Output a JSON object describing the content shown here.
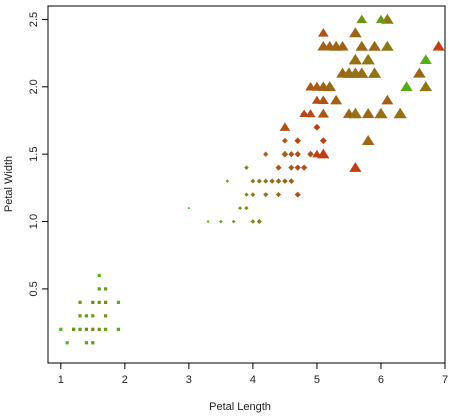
{
  "chart_data": {
    "type": "scatter",
    "title": "",
    "xlabel": "Petal Length",
    "ylabel": "Petal Width",
    "xlim": [
      0.8,
      7.0
    ],
    "ylim": [
      -0.05,
      2.6
    ],
    "xticks": [
      1,
      2,
      3,
      4,
      5,
      6,
      7
    ],
    "yticks": [
      0.5,
      1.0,
      1.5,
      2.0,
      2.5
    ],
    "ytick_labels": [
      "0.5",
      "1.0",
      "1.5",
      "2.0",
      "2.5"
    ],
    "grid": false,
    "legend": "none",
    "series": [
      {
        "marker": "square",
        "values": [
          [
            1.0,
            0.2,
            0.08
          ],
          [
            1.1,
            0.1,
            0.1
          ],
          [
            1.2,
            0.2,
            0.15
          ],
          [
            1.3,
            0.2,
            0.25
          ],
          [
            1.3,
            0.3,
            0.25
          ],
          [
            1.3,
            0.4,
            0.3
          ],
          [
            1.4,
            0.2,
            0.4
          ],
          [
            1.4,
            0.1,
            0.2
          ],
          [
            1.4,
            0.3,
            0.25
          ],
          [
            1.5,
            0.2,
            0.4
          ],
          [
            1.5,
            0.1,
            0.3
          ],
          [
            1.5,
            0.4,
            0.35
          ],
          [
            1.5,
            0.3,
            0.2
          ],
          [
            1.6,
            0.2,
            0.3
          ],
          [
            1.6,
            0.4,
            0.3
          ],
          [
            1.6,
            0.6,
            0.1
          ],
          [
            1.6,
            0.5,
            0.2
          ],
          [
            1.7,
            0.4,
            0.4
          ],
          [
            1.7,
            0.3,
            0.3
          ],
          [
            1.7,
            0.5,
            0.25
          ],
          [
            1.7,
            0.2,
            0.2
          ],
          [
            1.9,
            0.2,
            0.2
          ],
          [
            1.9,
            0.4,
            0.15
          ],
          [
            1.2,
            0.2,
            0.25
          ]
        ]
      },
      {
        "marker": "diamond",
        "values": [
          [
            3.0,
            1.1,
            0.05
          ],
          [
            3.3,
            1.0,
            0.1
          ],
          [
            3.5,
            1.0,
            0.2
          ],
          [
            3.6,
            1.3,
            0.2
          ],
          [
            3.7,
            1.0,
            0.25
          ],
          [
            3.8,
            1.1,
            0.3
          ],
          [
            3.9,
            1.1,
            0.35
          ],
          [
            3.9,
            1.2,
            0.35
          ],
          [
            3.9,
            1.4,
            0.4
          ],
          [
            4.0,
            1.0,
            0.4
          ],
          [
            4.0,
            1.2,
            0.45
          ],
          [
            4.0,
            1.3,
            0.45
          ],
          [
            4.1,
            1.0,
            0.5
          ],
          [
            4.1,
            1.3,
            0.5
          ],
          [
            4.2,
            1.2,
            0.5
          ],
          [
            4.2,
            1.3,
            0.5
          ],
          [
            4.2,
            1.5,
            0.55
          ],
          [
            4.3,
            1.3,
            0.55
          ],
          [
            4.4,
            1.2,
            0.55
          ],
          [
            4.4,
            1.3,
            0.6
          ],
          [
            4.4,
            1.4,
            0.6
          ],
          [
            4.5,
            1.3,
            0.6
          ],
          [
            4.5,
            1.5,
            0.65
          ],
          [
            4.5,
            1.6,
            0.65
          ],
          [
            4.5,
            1.7,
            0.65
          ],
          [
            4.6,
            1.3,
            0.65
          ],
          [
            4.6,
            1.4,
            0.7
          ],
          [
            4.6,
            1.5,
            0.7
          ],
          [
            4.7,
            1.2,
            0.7
          ],
          [
            4.7,
            1.4,
            0.75
          ],
          [
            4.7,
            1.5,
            0.75
          ],
          [
            4.8,
            1.4,
            0.75
          ],
          [
            4.8,
            1.8,
            0.8
          ],
          [
            4.9,
            1.5,
            0.8
          ],
          [
            5.0,
            1.7,
            0.85
          ],
          [
            5.1,
            1.6,
            0.85
          ],
          [
            4.4,
            1.4,
            0.7
          ],
          [
            4.5,
            1.5,
            0.8
          ],
          [
            4.7,
            1.6,
            0.8
          ],
          [
            4.1,
            1.0,
            0.4
          ],
          [
            3.5,
            1.0,
            0.2
          ],
          [
            4.0,
            1.3,
            0.4
          ],
          [
            4.4,
            1.3,
            0.5
          ],
          [
            4.6,
            1.4,
            0.6
          ],
          [
            4.8,
            1.8,
            0.7
          ],
          [
            4.5,
            1.5,
            0.5
          ],
          [
            4.9,
            1.5,
            0.7
          ],
          [
            4.2,
            1.3,
            0.4
          ]
        ]
      },
      {
        "marker": "triangle",
        "values": [
          [
            4.5,
            1.7,
            0.7
          ],
          [
            4.8,
            1.8,
            0.8
          ],
          [
            4.9,
            1.8,
            0.75
          ],
          [
            4.9,
            2.0,
            0.7
          ],
          [
            5.0,
            1.5,
            0.8
          ],
          [
            5.0,
            1.9,
            0.75
          ],
          [
            5.0,
            2.0,
            0.65
          ],
          [
            5.1,
            1.5,
            0.85
          ],
          [
            5.1,
            1.8,
            0.65
          ],
          [
            5.1,
            1.9,
            0.7
          ],
          [
            5.1,
            2.0,
            0.6
          ],
          [
            5.1,
            2.3,
            0.6
          ],
          [
            5.1,
            2.4,
            0.7
          ],
          [
            5.2,
            2.0,
            0.55
          ],
          [
            5.2,
            2.3,
            0.6
          ],
          [
            5.3,
            1.9,
            0.6
          ],
          [
            5.3,
            2.3,
            0.55
          ],
          [
            5.4,
            2.1,
            0.55
          ],
          [
            5.4,
            2.3,
            0.6
          ],
          [
            5.5,
            1.8,
            0.6
          ],
          [
            5.5,
            2.1,
            0.5
          ],
          [
            5.6,
            1.4,
            0.85
          ],
          [
            5.6,
            1.8,
            0.55
          ],
          [
            5.6,
            2.1,
            0.5
          ],
          [
            5.6,
            2.2,
            0.5
          ],
          [
            5.6,
            2.4,
            0.55
          ],
          [
            5.7,
            2.1,
            0.5
          ],
          [
            5.7,
            2.3,
            0.55
          ],
          [
            5.7,
            2.5,
            0.3
          ],
          [
            5.8,
            1.8,
            0.55
          ],
          [
            5.8,
            2.2,
            0.5
          ],
          [
            5.9,
            2.1,
            0.5
          ],
          [
            5.9,
            2.3,
            0.55
          ],
          [
            6.0,
            1.8,
            0.5
          ],
          [
            6.0,
            2.5,
            0.2
          ],
          [
            6.1,
            1.9,
            0.6
          ],
          [
            6.1,
            2.3,
            0.45
          ],
          [
            6.1,
            2.5,
            0.45
          ],
          [
            6.3,
            1.8,
            0.5
          ],
          [
            6.4,
            2.0,
            0.15
          ],
          [
            6.6,
            2.1,
            0.55
          ],
          [
            6.7,
            2.0,
            0.45
          ],
          [
            6.7,
            2.2,
            0.15
          ],
          [
            6.9,
            2.3,
            0.85
          ],
          [
            5.8,
            1.6,
            0.55
          ],
          [
            5.6,
            1.8,
            0.5
          ],
          [
            5.8,
            2.2,
            0.45
          ],
          [
            6.0,
            2.5,
            0.25
          ]
        ]
      }
    ]
  }
}
